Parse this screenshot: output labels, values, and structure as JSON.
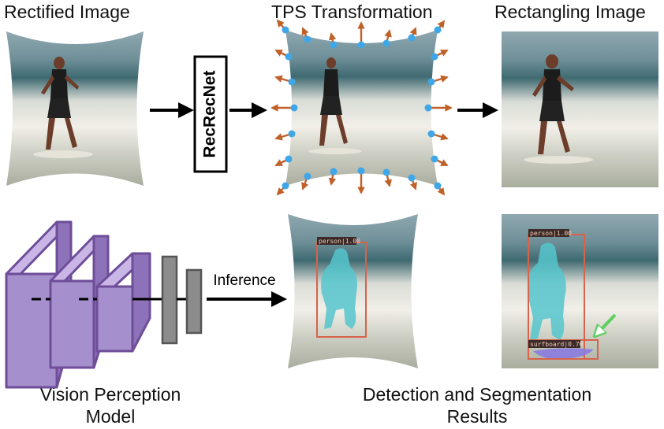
{
  "captions": {
    "rectified": "Rectified Image",
    "tps": "TPS Transformation",
    "rectangling": "Rectangling Image",
    "vision_line1": "Vision Perception",
    "vision_line2": "Model",
    "detection_line1": "Detection and Segmentation",
    "detection_line2": "Results"
  },
  "network_label": "RecRecNet",
  "inference_label": "Inference",
  "detections": {
    "middle_person": "person|1.00",
    "right_person": "person|1.00",
    "right_surfboard": "surfboard|0.70"
  },
  "colors": {
    "arrow_orange": "#c0612a",
    "control_point": "#3fa7e8",
    "box_red": "#d7634b",
    "mask_cyan": "#55c6cc",
    "mask_purple": "#8a7be0",
    "highlight_green": "#5ccf5c",
    "layer_purple": "#a58fcc",
    "layer_purple_stroke": "#6e4d99",
    "layer_gray": "#8c8c8c"
  }
}
